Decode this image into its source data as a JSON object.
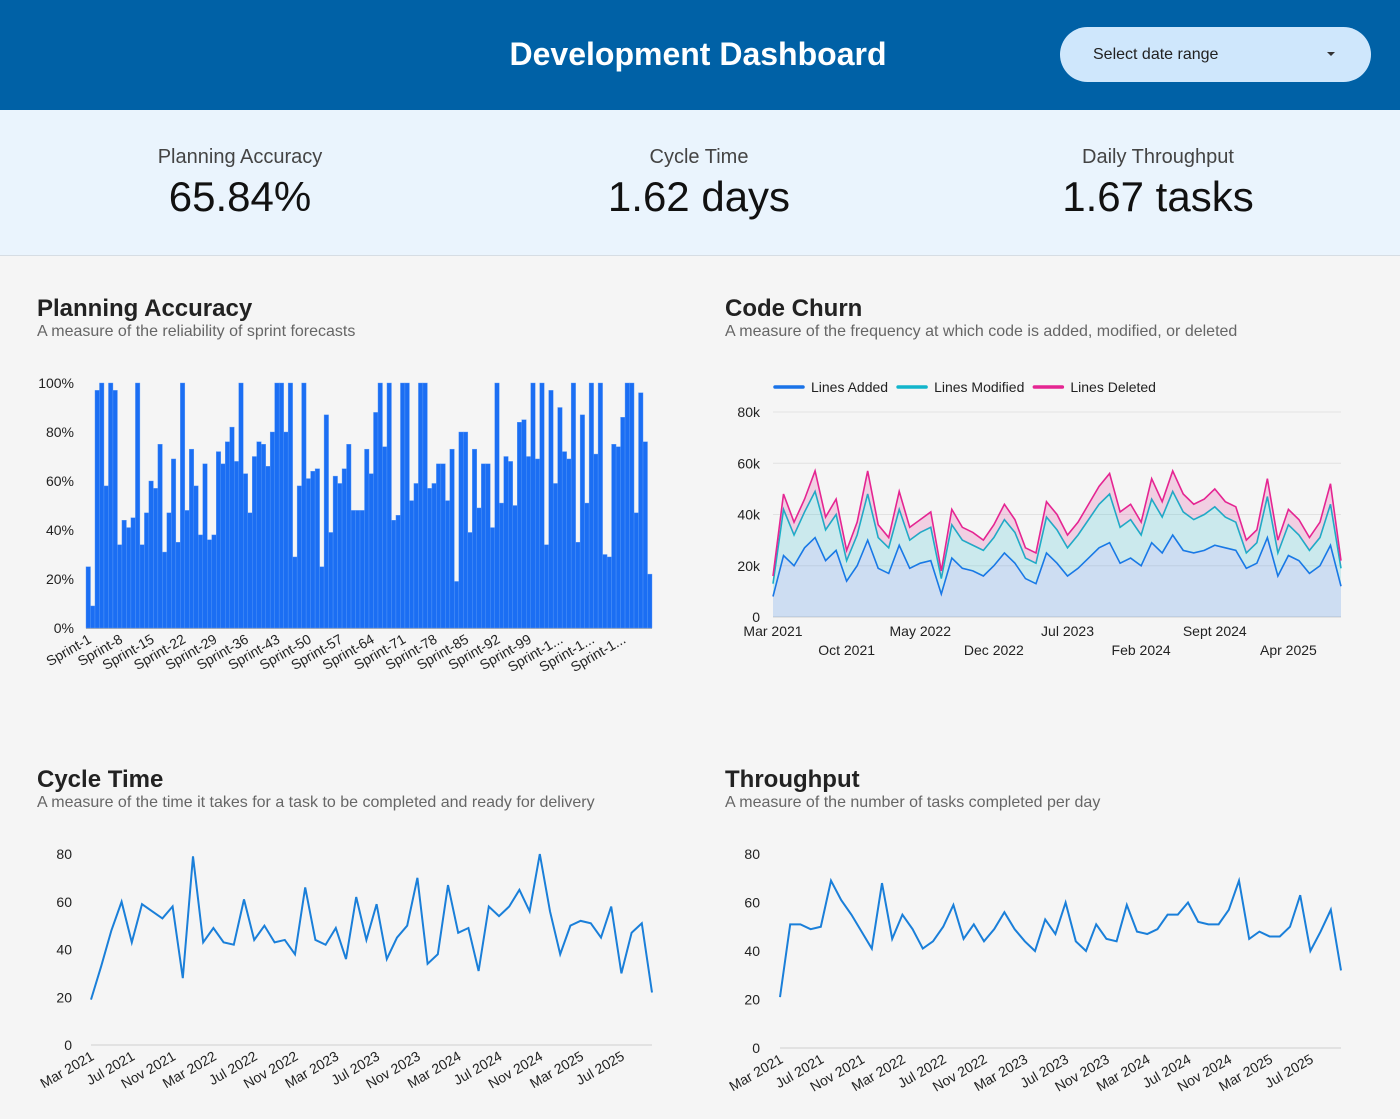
{
  "header": {
    "title": "Development Dashboard",
    "date_range": "Select date range"
  },
  "kpis": [
    {
      "label": "Planning Accuracy",
      "value": "65.84%"
    },
    {
      "label": "Cycle Time",
      "value": "1.62 days"
    },
    {
      "label": "Daily Throughput",
      "value": "1.67 tasks"
    }
  ],
  "chart_data": [
    {
      "type": "bar",
      "title": "Planning Accuracy",
      "subtitle": "A measure of the reliability of sprint forecasts",
      "color": "#1b6ef3",
      "grid": false,
      "categories": [
        "Sprint-1",
        null,
        null,
        null,
        null,
        null,
        null,
        "Sprint-8",
        null,
        null,
        null,
        null,
        null,
        null,
        "Sprint-15",
        null,
        null,
        null,
        null,
        null,
        null,
        "Sprint-22",
        null,
        null,
        null,
        null,
        null,
        null,
        "Sprint-29",
        null,
        null,
        null,
        null,
        null,
        null,
        "Sprint-36",
        null,
        null,
        null,
        null,
        null,
        null,
        "Sprint-43",
        null,
        null,
        null,
        null,
        null,
        null,
        "Sprint-50",
        null,
        null,
        null,
        null,
        null,
        null,
        "Sprint-57",
        null,
        null,
        null,
        null,
        null,
        null,
        "Sprint-64",
        null,
        null,
        null,
        null,
        null,
        null,
        "Sprint-71",
        null,
        null,
        null,
        null,
        null,
        null,
        "Sprint-78",
        null,
        null,
        null,
        null,
        null,
        null,
        "Sprint-85",
        null,
        null,
        null,
        null,
        null,
        null,
        "Sprint-92",
        null,
        null,
        null,
        null,
        null,
        null,
        "Sprint-99",
        null,
        null,
        null,
        null,
        null,
        null,
        "Sprint-1...",
        null,
        null,
        null,
        null,
        null,
        null,
        "Sprint-1...",
        null,
        null,
        null,
        null,
        null,
        null,
        "Sprint-1...",
        null,
        null,
        null,
        null,
        null,
        null
      ],
      "values": [
        25,
        9,
        97,
        100,
        58,
        100,
        97,
        34,
        44,
        41,
        45,
        100,
        34,
        47,
        60,
        57,
        75,
        31,
        47,
        69,
        35,
        100,
        48,
        73,
        58,
        38,
        67,
        36,
        38,
        72,
        67,
        76,
        82,
        68,
        100,
        63,
        47,
        70,
        76,
        75,
        66,
        80,
        100,
        100,
        80,
        100,
        29,
        58,
        100,
        61,
        64,
        65,
        25,
        87,
        39,
        62,
        59,
        65,
        75,
        48,
        48,
        48,
        73,
        63,
        88,
        100,
        74,
        100,
        44,
        46,
        100,
        100,
        52,
        59,
        100,
        100,
        57,
        59,
        67,
        67,
        52,
        73,
        19,
        80,
        80,
        39,
        73,
        49,
        67,
        67,
        41,
        100,
        51,
        70,
        68,
        50,
        84,
        85,
        70,
        100,
        69,
        100,
        34,
        97,
        59,
        90,
        72,
        69,
        100,
        35,
        87,
        51,
        100,
        71,
        100,
        30,
        29,
        75,
        74,
        86,
        100,
        100,
        47,
        96,
        76,
        22
      ],
      "ylim": [
        0,
        100
      ],
      "yticks": [
        {
          "value": 0,
          "label": "0%"
        },
        {
          "value": 20,
          "label": "20%"
        },
        {
          "value": 40,
          "label": "40%"
        },
        {
          "value": 60,
          "label": "60%"
        },
        {
          "value": 80,
          "label": "80%"
        },
        {
          "value": 100,
          "label": "100%"
        }
      ]
    },
    {
      "type": "area",
      "stacked": true,
      "title": "Code Churn",
      "subtitle": "A measure of the frequency at which code is added, modified, or deleted",
      "grid": true,
      "legend": "top-left",
      "categories": [
        "Mar 2021",
        null,
        null,
        null,
        null,
        null,
        null,
        "Oct 2021",
        null,
        null,
        null,
        null,
        null,
        null,
        "May 2022",
        null,
        null,
        null,
        null,
        null,
        null,
        "Dec 2022",
        null,
        null,
        null,
        null,
        null,
        null,
        "Jul 2023",
        null,
        null,
        null,
        null,
        null,
        null,
        "Feb 2024",
        null,
        null,
        null,
        null,
        null,
        null,
        "Sept 2024",
        null,
        null,
        null,
        null,
        null,
        null,
        "Apr 2025",
        null,
        null,
        null,
        null,
        null
      ],
      "series": [
        {
          "name": "Lines Added",
          "color": "#1a73e8",
          "values": [
            8000,
            24000,
            20000,
            27000,
            31000,
            22000,
            26000,
            14000,
            20000,
            30000,
            19000,
            17000,
            28000,
            19000,
            21000,
            22000,
            9000,
            23000,
            19000,
            18000,
            16000,
            20000,
            25000,
            21000,
            15000,
            13000,
            25000,
            21000,
            16000,
            19000,
            23000,
            27000,
            29000,
            21000,
            23000,
            20000,
            29000,
            25000,
            32000,
            26000,
            25000,
            26000,
            28000,
            27000,
            26000,
            19000,
            21000,
            31000,
            16000,
            24000,
            22000,
            17000,
            20000,
            28000,
            12000
          ]
        },
        {
          "name": "Lines Modified",
          "color": "#12b5cb",
          "values": [
            5000,
            18000,
            12000,
            14000,
            18000,
            12000,
            14000,
            8000,
            12000,
            18000,
            12000,
            10000,
            14000,
            11000,
            12000,
            13000,
            6000,
            13000,
            11000,
            10000,
            10000,
            11000,
            13000,
            12000,
            8000,
            8000,
            14000,
            13000,
            11000,
            13000,
            15000,
            17000,
            19000,
            14000,
            15000,
            12000,
            17000,
            14000,
            17000,
            15000,
            13000,
            14000,
            15000,
            12000,
            11000,
            6000,
            8000,
            16000,
            9000,
            12000,
            10000,
            9000,
            11000,
            16000,
            7000
          ]
        },
        {
          "name": "Lines Deleted",
          "color": "#e52592",
          "values": [
            3000,
            6000,
            5000,
            5000,
            8000,
            5000,
            6000,
            4000,
            5000,
            9000,
            5000,
            4000,
            7000,
            5000,
            5000,
            6000,
            3000,
            6000,
            5000,
            5000,
            4000,
            5000,
            6000,
            5000,
            4000,
            4000,
            6000,
            6000,
            5000,
            5000,
            6000,
            7000,
            8000,
            6000,
            6000,
            5000,
            8000,
            6000,
            8000,
            7000,
            6000,
            6000,
            7000,
            6000,
            6000,
            5000,
            5000,
            7000,
            5000,
            6000,
            6000,
            5000,
            6000,
            8000,
            3000
          ]
        }
      ],
      "ylim": [
        0,
        80000
      ],
      "yticks": [
        0,
        {
          "value": 20000,
          "label": "20k"
        },
        {
          "value": 40000,
          "label": "40k"
        },
        {
          "value": 60000,
          "label": "60k"
        },
        {
          "value": 80000,
          "label": "80k"
        }
      ]
    },
    {
      "type": "line",
      "title": "Cycle Time",
      "subtitle": "A measure of the time it takes for a task to be completed and ready for delivery",
      "color": "#1a7fd9",
      "grid": false,
      "categories": [
        "Mar 2021",
        null,
        null,
        null,
        "Jul 2021",
        null,
        null,
        null,
        "Nov 2021",
        null,
        null,
        null,
        "Mar 2022",
        null,
        null,
        null,
        "Jul 2022",
        null,
        null,
        null,
        "Nov 2022",
        null,
        null,
        null,
        "Mar 2023",
        null,
        null,
        null,
        "Jul 2023",
        null,
        null,
        null,
        "Nov 2023",
        null,
        null,
        null,
        "Mar 2024",
        null,
        null,
        null,
        "Jul 2024",
        null,
        null,
        null,
        "Nov 2024",
        null,
        null,
        null,
        "Mar 2025",
        null,
        null,
        null,
        "Jul 2025",
        null,
        null,
        null
      ],
      "values": [
        19,
        33,
        48,
        60,
        43,
        59,
        56,
        53,
        58,
        28,
        79,
        43,
        49,
        43,
        42,
        61,
        44,
        50,
        43,
        44,
        38,
        66,
        44,
        42,
        49,
        36,
        62,
        44,
        59,
        36,
        45,
        50,
        70,
        34,
        38,
        67,
        47,
        49,
        31,
        58,
        54,
        58,
        65,
        56,
        80,
        56,
        38,
        50,
        52,
        51,
        45,
        58,
        30,
        47,
        51,
        22
      ],
      "ylim": [
        0,
        80
      ],
      "yticks": [
        0,
        20,
        40,
        60,
        80
      ]
    },
    {
      "type": "line",
      "title": "Throughput",
      "subtitle": "A measure of the number of tasks completed per day",
      "color": "#1a7fd9",
      "grid": false,
      "categories": [
        "Mar 2021",
        null,
        null,
        null,
        "Jul 2021",
        null,
        null,
        null,
        "Nov 2021",
        null,
        null,
        null,
        "Mar 2022",
        null,
        null,
        null,
        "Jul 2022",
        null,
        null,
        null,
        "Nov 2022",
        null,
        null,
        null,
        "Mar 2023",
        null,
        null,
        null,
        "Jul 2023",
        null,
        null,
        null,
        "Nov 2023",
        null,
        null,
        null,
        "Mar 2024",
        null,
        null,
        null,
        "Jul 2024",
        null,
        null,
        null,
        "Nov 2024",
        null,
        null,
        null,
        "Mar 2025",
        null,
        null,
        null,
        "Jul 2025",
        null,
        null,
        null
      ],
      "values": [
        21,
        51,
        51,
        49,
        50,
        69,
        61,
        55,
        48,
        41,
        68,
        45,
        55,
        49,
        41,
        44,
        50,
        59,
        45,
        51,
        44,
        49,
        56,
        49,
        44,
        40,
        53,
        47,
        60,
        44,
        40,
        51,
        45,
        44,
        59,
        48,
        47,
        49,
        55,
        55,
        60,
        52,
        51,
        51,
        57,
        69,
        45,
        48,
        46,
        46,
        50,
        63,
        40,
        48,
        57,
        32
      ],
      "ylim": [
        0,
        80
      ],
      "yticks": [
        0,
        20,
        40,
        60,
        80
      ]
    }
  ]
}
